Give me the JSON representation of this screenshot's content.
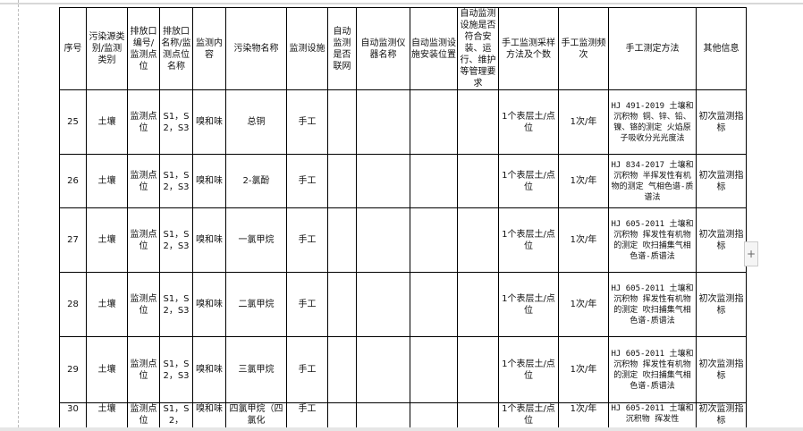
{
  "headers": [
    "序号",
    "污染源类别/监测类别",
    "排放口编号/监测点位",
    "排放口名称/监测点位名称",
    "监测内容",
    "污染物名称",
    "监测设施",
    "自动监测是否联网",
    "自动监测仪器名称",
    "自动监测设施安装位置",
    "自动监测设施是否符合安装、运行、维护等管理要求",
    "手工监测采样方法及个数",
    "手工监测频次",
    "手工测定方法",
    "其他信息"
  ],
  "rows": [
    {
      "no": "25",
      "category": "土壤",
      "point": "监测点位",
      "name": "S1，S2，S3",
      "content": "嗅和味",
      "pollutant": "总铜",
      "facility": "手工",
      "sampling": "1个表层土/点位",
      "frequency": "1次/年",
      "method": "HJ 491-2019 土壤和沉积物 铜、锌、铅、镍、铬的测定 火焰原子吸收分光光度法",
      "other": "初次监测指标"
    },
    {
      "no": "26",
      "category": "土壤",
      "point": "监测点位",
      "name": "S1，S2，S3",
      "content": "嗅和味",
      "pollutant": "2-氯酚",
      "facility": "手工",
      "sampling": "1个表层土/点位",
      "frequency": "1次/年",
      "method": "HJ 834-2017 土壤和沉积物 半挥发性有机物的测定 气相色谱-质谱法",
      "other": "初次监测指标"
    },
    {
      "no": "27",
      "category": "土壤",
      "point": "监测点位",
      "name": "S1，S2，S3",
      "content": "嗅和味",
      "pollutant": "一氯甲烷",
      "facility": "手工",
      "sampling": "1个表层土/点位",
      "frequency": "1次/年",
      "method": "HJ 605-2011 土壤和沉积物 挥发性有机物的测定 吹扫捕集气相色谱-质谱法",
      "other": "初次监测指标"
    },
    {
      "no": "28",
      "category": "土壤",
      "point": "监测点位",
      "name": "S1，S2，S3",
      "content": "嗅和味",
      "pollutant": "二氯甲烷",
      "facility": "手工",
      "sampling": "1个表层土/点位",
      "frequency": "1次/年",
      "method": "HJ 605-2011 土壤和沉积物 挥发性有机物的测定 吹扫捕集气相色谱-质谱法",
      "other": "初次监测指标"
    },
    {
      "no": "29",
      "category": "土壤",
      "point": "监测点位",
      "name": "S1，S2，S3",
      "content": "嗅和味",
      "pollutant": "三氯甲烷",
      "facility": "手工",
      "sampling": "1个表层土/点位",
      "frequency": "1次/年",
      "method": "HJ 605-2011 土壤和沉积物 挥发性有机物的测定 吹扫捕集气相色谱-质谱法",
      "other": "初次监测指标"
    },
    {
      "no": "30",
      "category": "土壤",
      "point": "监测点位",
      "name": "S1，S2，",
      "content": "嗅和味",
      "pollutant": "四氯甲烷（四氯化",
      "facility": "手工",
      "sampling": "1个表层土/点位",
      "frequency": "1次/年",
      "method": "HJ 605-2011 土壤和沉积物 挥发性",
      "other": "初次监测指标"
    }
  ],
  "plus_label": "+"
}
